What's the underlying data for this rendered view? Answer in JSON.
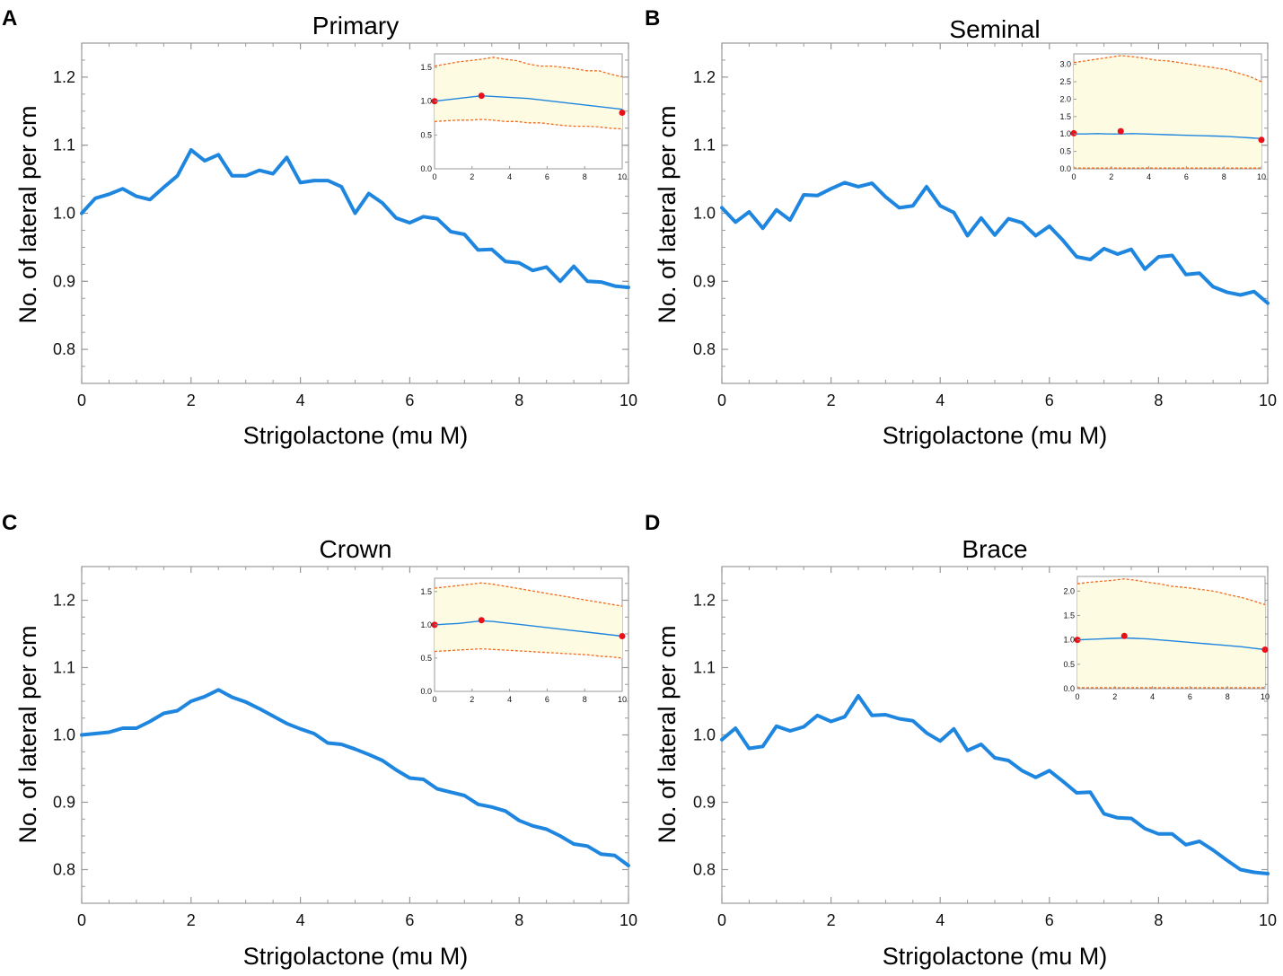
{
  "colors": {
    "line": "#1f86e0",
    "band_fill": "#fdfbe1",
    "bound": "#f26b1d",
    "marker": "#e8101a",
    "axis": "#999999"
  },
  "chart_data": [
    {
      "panel_label": "A",
      "type": "line",
      "title": "Primary",
      "xlabel": "Strigolactone (mu M)",
      "ylabel": "No. of lateral per cm",
      "xlim": [
        0,
        10
      ],
      "ylim": [
        0.75,
        1.25
      ],
      "xticks": [
        "0",
        "2",
        "4",
        "6",
        "8",
        "10"
      ],
      "yticks": [
        "0.8",
        "0.9",
        "1.0",
        "1.1",
        "1.2"
      ],
      "x": [
        0,
        0.25,
        0.5,
        0.75,
        1,
        1.25,
        1.5,
        1.75,
        2,
        2.25,
        2.5,
        2.75,
        3,
        3.25,
        3.5,
        3.75,
        4,
        4.25,
        4.5,
        4.75,
        5,
        5.25,
        5.5,
        5.75,
        6,
        6.25,
        6.5,
        6.75,
        7,
        7.25,
        7.5,
        7.75,
        8,
        8.25,
        8.5,
        8.75,
        9,
        9.25,
        9.5,
        9.75,
        10
      ],
      "y": [
        1.0,
        1.022,
        1.028,
        1.036,
        1.025,
        1.02,
        1.038,
        1.055,
        1.093,
        1.077,
        1.086,
        1.055,
        1.055,
        1.063,
        1.058,
        1.082,
        1.045,
        1.048,
        1.048,
        1.039,
        1.0,
        1.029,
        1.015,
        0.993,
        0.986,
        0.995,
        0.992,
        0.973,
        0.969,
        0.946,
        0.947,
        0.929,
        0.927,
        0.916,
        0.921,
        0.9,
        0.922,
        0.9,
        0.899,
        0.893,
        0.891
      ],
      "inset": {
        "xlim": [
          0,
          10
        ],
        "ylim": [
          0,
          1.7
        ],
        "xticks": [
          "0",
          "2",
          "4",
          "6",
          "8",
          "10"
        ],
        "yticks": [
          "0.0",
          "0.5",
          "1.0",
          "1.5"
        ],
        "mean": [
          1.0,
          1.02,
          1.04,
          1.06,
          1.08,
          1.07,
          1.06,
          1.05,
          1.04,
          1.02,
          1.0,
          0.98,
          0.96,
          0.94,
          0.92,
          0.9,
          0.88
        ],
        "upper": [
          1.52,
          1.55,
          1.58,
          1.6,
          1.62,
          1.65,
          1.62,
          1.6,
          1.55,
          1.52,
          1.52,
          1.5,
          1.48,
          1.45,
          1.45,
          1.4,
          1.36
        ],
        "lower": [
          0.7,
          0.71,
          0.72,
          0.72,
          0.73,
          0.72,
          0.7,
          0.7,
          0.68,
          0.68,
          0.66,
          0.64,
          0.63,
          0.63,
          0.62,
          0.6,
          0.59
        ],
        "markers": [
          [
            0,
            1.0
          ],
          [
            2.5,
            1.08
          ],
          [
            10,
            0.83
          ]
        ]
      }
    },
    {
      "panel_label": "B",
      "type": "line",
      "title": "Seminal",
      "xlabel": "Strigolactone (mu M)",
      "ylabel": "No. of lateral per cm",
      "xlim": [
        0,
        10
      ],
      "ylim": [
        0.75,
        1.25
      ],
      "xticks": [
        "0",
        "2",
        "4",
        "6",
        "8",
        "10"
      ],
      "yticks": [
        "0.8",
        "0.9",
        "1.0",
        "1.1",
        "1.2"
      ],
      "x": [
        0,
        0.25,
        0.5,
        0.75,
        1,
        1.25,
        1.5,
        1.75,
        2,
        2.25,
        2.5,
        2.75,
        3,
        3.25,
        3.5,
        3.75,
        4,
        4.25,
        4.5,
        4.75,
        5,
        5.25,
        5.5,
        5.75,
        6,
        6.25,
        6.5,
        6.75,
        7,
        7.25,
        7.5,
        7.75,
        8,
        8.25,
        8.5,
        8.75,
        9,
        9.25,
        9.5,
        9.75,
        10
      ],
      "y": [
        1.008,
        0.987,
        1.002,
        0.978,
        1.005,
        0.99,
        1.027,
        1.026,
        1.036,
        1.045,
        1.039,
        1.044,
        1.024,
        1.008,
        1.011,
        1.039,
        1.011,
        1.001,
        0.967,
        0.993,
        0.968,
        0.992,
        0.986,
        0.967,
        0.981,
        0.96,
        0.936,
        0.932,
        0.948,
        0.94,
        0.947,
        0.918,
        0.936,
        0.938,
        0.91,
        0.912,
        0.892,
        0.884,
        0.88,
        0.885,
        0.868
      ],
      "inset": {
        "xlim": [
          0,
          10
        ],
        "ylim": [
          0,
          3.3
        ],
        "xticks": [
          "0",
          "2",
          "4",
          "6",
          "8",
          "10"
        ],
        "yticks": [
          "0.0",
          "0.5",
          "1.0",
          "1.5",
          "2.0",
          "2.5",
          "3.0"
        ],
        "mean": [
          1.0,
          1.0,
          1.01,
          1.0,
          1.0,
          1.01,
          1.0,
          0.99,
          0.98,
          0.97,
          0.96,
          0.95,
          0.94,
          0.93,
          0.91,
          0.89,
          0.87
        ],
        "upper": [
          3.05,
          3.1,
          3.15,
          3.2,
          3.25,
          3.22,
          3.18,
          3.12,
          3.1,
          3.05,
          3.0,
          2.95,
          2.9,
          2.85,
          2.75,
          2.65,
          2.5
        ],
        "lower": [
          0.02,
          0.02,
          0.02,
          0.02,
          0.02,
          0.02,
          0.02,
          0.02,
          0.02,
          0.02,
          0.02,
          0.02,
          0.02,
          0.02,
          0.02,
          0.02,
          0.02
        ],
        "markers": [
          [
            0,
            1.02
          ],
          [
            2.5,
            1.08
          ],
          [
            10,
            0.83
          ]
        ]
      }
    },
    {
      "panel_label": "C",
      "type": "line",
      "title": "Crown",
      "xlabel": "Strigolactone (mu M)",
      "ylabel": "No. of lateral per cm",
      "xlim": [
        0,
        10
      ],
      "ylim": [
        0.75,
        1.25
      ],
      "xticks": [
        "0",
        "2",
        "4",
        "6",
        "8",
        "10"
      ],
      "yticks": [
        "0.8",
        "0.9",
        "1.0",
        "1.1",
        "1.2"
      ],
      "x": [
        0,
        0.25,
        0.5,
        0.75,
        1,
        1.25,
        1.5,
        1.75,
        2,
        2.25,
        2.5,
        2.75,
        3,
        3.25,
        3.5,
        3.75,
        4,
        4.25,
        4.5,
        4.75,
        5,
        5.25,
        5.5,
        5.75,
        6,
        6.25,
        6.5,
        6.75,
        7,
        7.25,
        7.5,
        7.75,
        8,
        8.25,
        8.5,
        8.75,
        9,
        9.25,
        9.5,
        9.75,
        10
      ],
      "y": [
        1.0,
        1.002,
        1.004,
        1.01,
        1.01,
        1.02,
        1.032,
        1.036,
        1.05,
        1.057,
        1.067,
        1.056,
        1.049,
        1.039,
        1.028,
        1.017,
        1.009,
        1.002,
        0.988,
        0.986,
        0.979,
        0.971,
        0.962,
        0.948,
        0.936,
        0.934,
        0.92,
        0.915,
        0.91,
        0.897,
        0.893,
        0.887,
        0.873,
        0.865,
        0.86,
        0.85,
        0.838,
        0.835,
        0.823,
        0.821,
        0.806
      ],
      "inset": {
        "xlim": [
          0,
          10
        ],
        "ylim": [
          0,
          1.7
        ],
        "xticks": [
          "0",
          "2",
          "4",
          "6",
          "8",
          "10"
        ],
        "yticks": [
          "0.0",
          "0.5",
          "1.0",
          "1.5"
        ],
        "mean": [
          1.0,
          1.01,
          1.02,
          1.04,
          1.06,
          1.05,
          1.03,
          1.01,
          0.99,
          0.97,
          0.95,
          0.93,
          0.91,
          0.89,
          0.87,
          0.85,
          0.83
        ],
        "upper": [
          1.55,
          1.57,
          1.59,
          1.61,
          1.63,
          1.61,
          1.58,
          1.55,
          1.52,
          1.49,
          1.46,
          1.43,
          1.4,
          1.37,
          1.34,
          1.31,
          1.28
        ],
        "lower": [
          0.6,
          0.61,
          0.62,
          0.63,
          0.64,
          0.63,
          0.62,
          0.61,
          0.6,
          0.59,
          0.58,
          0.57,
          0.56,
          0.55,
          0.53,
          0.52,
          0.5
        ],
        "markers": [
          [
            0,
            1.0
          ],
          [
            2.5,
            1.07
          ],
          [
            10,
            0.83
          ]
        ]
      }
    },
    {
      "panel_label": "D",
      "type": "line",
      "title": "Brace",
      "xlabel": "Strigolactone (mu M)",
      "ylabel": "No. of lateral per cm",
      "xlim": [
        0,
        10
      ],
      "ylim": [
        0.75,
        1.25
      ],
      "xticks": [
        "0",
        "2",
        "4",
        "6",
        "8",
        "10"
      ],
      "yticks": [
        "0.8",
        "0.9",
        "1.0",
        "1.1",
        "1.2"
      ],
      "x": [
        0,
        0.25,
        0.5,
        0.75,
        1,
        1.25,
        1.5,
        1.75,
        2,
        2.25,
        2.5,
        2.75,
        3,
        3.25,
        3.5,
        3.75,
        4,
        4.25,
        4.5,
        4.75,
        5,
        5.25,
        5.5,
        5.75,
        6,
        6.25,
        6.5,
        6.75,
        7,
        7.25,
        7.5,
        7.75,
        8,
        8.25,
        8.5,
        8.75,
        9,
        9.25,
        9.5,
        9.75,
        10
      ],
      "y": [
        0.993,
        1.01,
        0.98,
        0.983,
        1.013,
        1.006,
        1.012,
        1.029,
        1.02,
        1.027,
        1.058,
        1.029,
        1.03,
        1.024,
        1.021,
        1.003,
        0.991,
        1.009,
        0.977,
        0.986,
        0.966,
        0.962,
        0.947,
        0.937,
        0.947,
        0.931,
        0.914,
        0.915,
        0.883,
        0.877,
        0.876,
        0.861,
        0.853,
        0.853,
        0.837,
        0.842,
        0.829,
        0.814,
        0.8,
        0.796,
        0.794
      ],
      "inset": {
        "xlim": [
          0,
          10
        ],
        "ylim": [
          0,
          2.3
        ],
        "xticks": [
          "0",
          "2",
          "4",
          "6",
          "8",
          "10"
        ],
        "yticks": [
          "0.0",
          "0.5",
          "1.0",
          "1.5",
          "2.0"
        ],
        "mean": [
          1.0,
          1.01,
          1.02,
          1.03,
          1.04,
          1.03,
          1.02,
          1.0,
          0.98,
          0.96,
          0.94,
          0.92,
          0.9,
          0.88,
          0.86,
          0.83,
          0.8
        ],
        "upper": [
          2.15,
          2.18,
          2.2,
          2.22,
          2.25,
          2.22,
          2.18,
          2.15,
          2.1,
          2.08,
          2.05,
          2.02,
          1.98,
          1.92,
          1.87,
          1.8,
          1.72
        ],
        "lower": [
          0.02,
          0.02,
          0.02,
          0.02,
          0.02,
          0.02,
          0.02,
          0.02,
          0.02,
          0.02,
          0.02,
          0.02,
          0.02,
          0.02,
          0.02,
          0.02,
          0.02
        ],
        "markers": [
          [
            0,
            1.0
          ],
          [
            2.5,
            1.08
          ],
          [
            10,
            0.8
          ]
        ]
      }
    }
  ]
}
